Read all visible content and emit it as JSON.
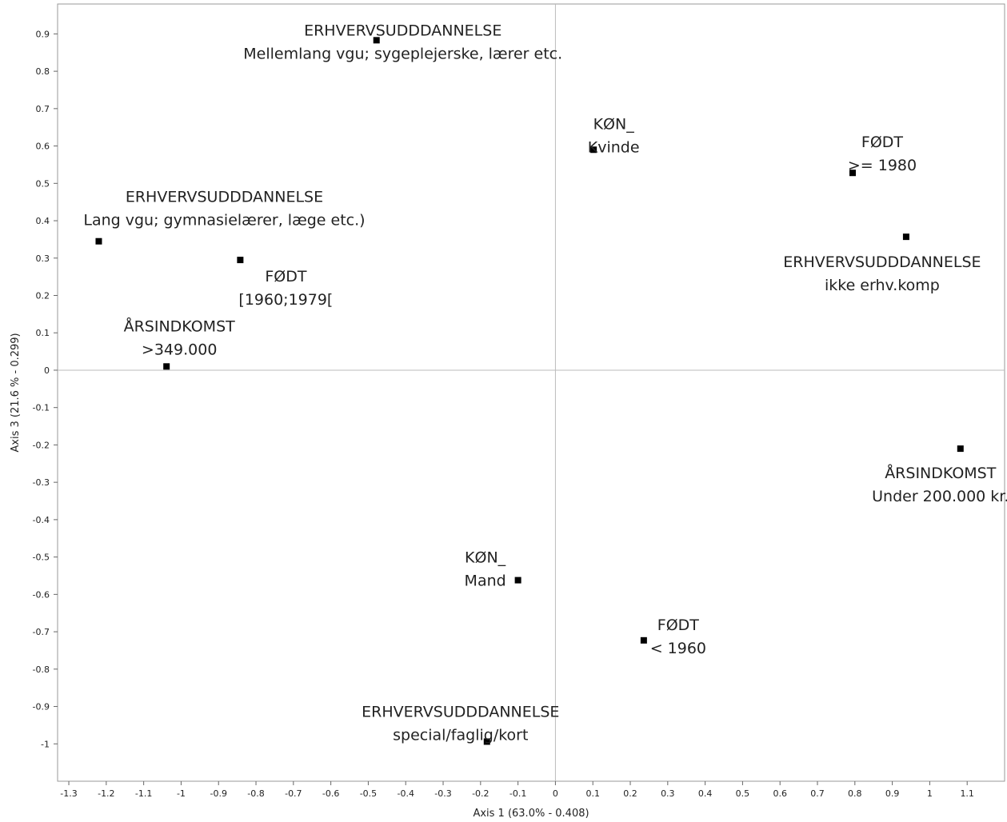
{
  "chart_data": {
    "type": "scatter",
    "title": "",
    "xlabel": "Axis 1 (63.0% - 0.408)",
    "ylabel": "Axis 3 (21.6 % - 0.299)",
    "xlim": [
      -1.33,
      1.2
    ],
    "ylim": [
      -1.1,
      0.98
    ],
    "x_ticks": [
      "-1.3",
      "-1.2",
      "-1.1",
      "-1",
      "-0.9",
      "-0.8",
      "-0.7",
      "-0.6",
      "-0.5",
      "-0.4",
      "-0.3",
      "-0.2",
      "-0.1",
      "0",
      "0.1",
      "0.2",
      "0.3",
      "0.4",
      "0.5",
      "0.6",
      "0.7",
      "0.8",
      "0.9",
      "1",
      "1.1"
    ],
    "y_ticks": [
      "0.9",
      "0.8",
      "0.7",
      "0.6",
      "0.5",
      "0.4",
      "0.3",
      "0.2",
      "0.1",
      "0",
      "-0.1",
      "-0.2",
      "-0.3",
      "-0.4",
      "-0.5",
      "-0.6",
      "-0.7",
      "-0.8",
      "-0.9",
      "-1"
    ],
    "grid": false,
    "zero_lines": true,
    "marker_color": "#000000",
    "points": [
      {
        "x": -0.478,
        "y": 0.883,
        "label": [
          "ERHVERVSUDDDANNELSE",
          "Mellemlang vgu; sygeplejerske, lærer etc."
        ]
      },
      {
        "x": 0.102,
        "y": 0.59,
        "label": [
          "KØN_",
          "Kvinde"
        ]
      },
      {
        "x": 0.794,
        "y": 0.528,
        "label": [
          "FØDT",
          ">= 1980"
        ]
      },
      {
        "x": -1.22,
        "y": 0.345,
        "label": [
          "ERHVERVSUDDDANNELSE",
          "Lang vgu; gymnasielærer, læge etc.)"
        ]
      },
      {
        "x": -0.842,
        "y": 0.295,
        "label": [
          "FØDT",
          "[1960;1979["
        ]
      },
      {
        "x": 0.937,
        "y": 0.357,
        "label": [
          "ERHVERVSUDDDANNELSE",
          "ikke erhv.komp"
        ]
      },
      {
        "x": -1.039,
        "y": 0.01,
        "label": [
          "ÅRSINDKOMST",
          ">349.000"
        ]
      },
      {
        "x": 1.082,
        "y": -0.21,
        "label": [
          "ÅRSINDKOMST",
          "Under 200.000 kr."
        ]
      },
      {
        "x": -0.1,
        "y": -0.562,
        "label": [
          "KØN_",
          "Mand"
        ]
      },
      {
        "x": 0.236,
        "y": -0.723,
        "label": [
          "FØDT",
          "< 1960"
        ]
      },
      {
        "x": -0.183,
        "y": -0.994,
        "label": [
          "ERHVERVSUDDDANNELSE",
          "special/faglig/kort"
        ]
      }
    ]
  }
}
